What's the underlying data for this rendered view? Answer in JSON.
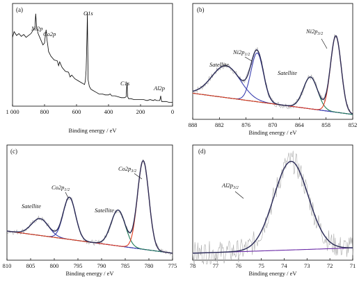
{
  "chart_data": [
    {
      "panel": "(a)",
      "type": "line",
      "xlabel": "Binding energy / eV",
      "xlim": [
        1000,
        0
      ],
      "xticks": [
        1000,
        800,
        600,
        400,
        200,
        0
      ],
      "xtick_labels": [
        "1 000",
        "800",
        "600",
        "400",
        "200",
        "0"
      ],
      "annotations": [
        "Ni2p",
        "Co2p",
        "O1s",
        "C1s",
        "Al2p"
      ],
      "series": [
        {
          "color": "#000000",
          "x": [
            1000,
            990,
            975,
            960,
            945,
            930,
            915,
            900,
            885,
            870,
            860,
            855,
            850,
            840,
            830,
            820,
            810,
            800,
            795,
            790,
            785,
            780,
            775,
            760,
            740,
            720,
            712,
            705,
            690,
            670,
            650,
            640,
            630,
            610,
            590,
            570,
            550,
            545,
            540,
            535,
            532,
            530,
            528,
            520,
            510,
            500,
            480,
            460,
            440,
            420,
            400,
            390,
            380,
            360,
            340,
            320,
            300,
            290,
            286,
            284,
            282,
            280,
            275,
            260,
            240,
            220,
            200,
            180,
            160,
            140,
            120,
            110,
            100,
            90,
            80,
            76,
            74,
            72,
            68,
            60,
            40,
            20,
            0
          ],
          "y": [
            0.7,
            0.76,
            0.72,
            0.74,
            0.71,
            0.73,
            0.7,
            0.72,
            0.74,
            0.78,
            0.8,
            0.95,
            0.82,
            0.74,
            0.7,
            0.66,
            0.62,
            0.64,
            0.72,
            0.78,
            0.68,
            0.62,
            0.55,
            0.5,
            0.46,
            0.45,
            0.4,
            0.44,
            0.38,
            0.34,
            0.33,
            0.28,
            0.3,
            0.26,
            0.24,
            0.22,
            0.2,
            0.24,
            0.35,
            0.7,
            0.96,
            0.6,
            0.25,
            0.18,
            0.15,
            0.14,
            0.12,
            0.1,
            0.1,
            0.09,
            0.09,
            0.1,
            0.08,
            0.08,
            0.07,
            0.06,
            0.06,
            0.07,
            0.18,
            0.22,
            0.12,
            0.07,
            0.05,
            0.05,
            0.04,
            0.04,
            0.04,
            0.04,
            0.03,
            0.04,
            0.03,
            0.04,
            0.03,
            0.03,
            0.03,
            0.06,
            0.08,
            0.05,
            0.02,
            0.02,
            0.02,
            0.01,
            0.01
          ]
        }
      ]
    },
    {
      "panel": "(b)",
      "type": "line",
      "xlabel": "Binding energy / eV",
      "xlim": [
        888,
        852
      ],
      "xticks": [
        888,
        882,
        876,
        870,
        864,
        858,
        852
      ],
      "annotations": [
        "Satellite",
        "Ni2p1/2",
        "Satellite",
        "Ni2p3/2"
      ],
      "series": [
        {
          "role": "background",
          "color": "#6a2aa6",
          "x": [
            888,
            852
          ],
          "y": [
            0.22,
            0.02
          ]
        },
        {
          "role": "satellite-1",
          "color": "#3a3fb0",
          "center": 880.5,
          "width": 3.2,
          "height": 0.3
        },
        {
          "role": "ni2p1/2",
          "color": "#3a3fb0",
          "center": 873.5,
          "width": 1.4,
          "height": 0.46
        },
        {
          "role": "satellite-2",
          "color": "#1f7a55",
          "center": 861.5,
          "width": 1.6,
          "height": 0.3
        },
        {
          "role": "ni2p3/2",
          "color": "#e03c1f",
          "center": 855.8,
          "width": 1.2,
          "height": 0.72
        },
        {
          "role": "envelope",
          "color": "#2b2b55"
        },
        {
          "role": "raw",
          "color": "#aaaaaa"
        }
      ]
    },
    {
      "panel": "(c)",
      "type": "line",
      "xlabel": "Binding energy / eV",
      "xlim": [
        810,
        775
      ],
      "xticks": [
        810,
        805,
        800,
        795,
        790,
        785,
        780,
        775
      ],
      "annotations": [
        "Satellite",
        "Co2p1/2",
        "Satellite",
        "Co2p3/2"
      ],
      "series": [
        {
          "role": "background",
          "color": "#6a2aa6",
          "x": [
            810,
            775
          ],
          "y": [
            0.25,
            0.04
          ]
        },
        {
          "role": "satellite-1",
          "color": "#3a3fb0",
          "center": 803.0,
          "width": 1.8,
          "height": 0.16
        },
        {
          "role": "co2p1/2",
          "color": "#3a3fb0",
          "center": 796.8,
          "width": 1.3,
          "height": 0.4
        },
        {
          "role": "satellite-2",
          "color": "#1f7a55",
          "center": 786.5,
          "width": 1.5,
          "height": 0.34
        },
        {
          "role": "co2p3/2",
          "color": "#e03c1f",
          "center": 781.2,
          "width": 1.2,
          "height": 0.84
        },
        {
          "role": "envelope",
          "color": "#2b2b55"
        },
        {
          "role": "raw",
          "color": "#aaaaaa"
        }
      ]
    },
    {
      "panel": "(d)",
      "type": "line",
      "xlabel": "Binding energy / eV",
      "xlim": [
        78,
        71
      ],
      "xticks": [
        78,
        77,
        76,
        75,
        74,
        73,
        72,
        71
      ],
      "annotations": [
        "Al2p3/2"
      ],
      "series": [
        {
          "role": "background",
          "color": "#6a2aa6",
          "x": [
            78,
            71
          ],
          "y": [
            0.04,
            0.09
          ]
        },
        {
          "role": "al2p3/2",
          "color": "#3a3fb0",
          "center": 73.7,
          "width": 0.75,
          "height": 0.84
        },
        {
          "role": "envelope",
          "color": "#2b2b55"
        },
        {
          "role": "raw",
          "color": "#aaaaaa"
        }
      ]
    }
  ]
}
